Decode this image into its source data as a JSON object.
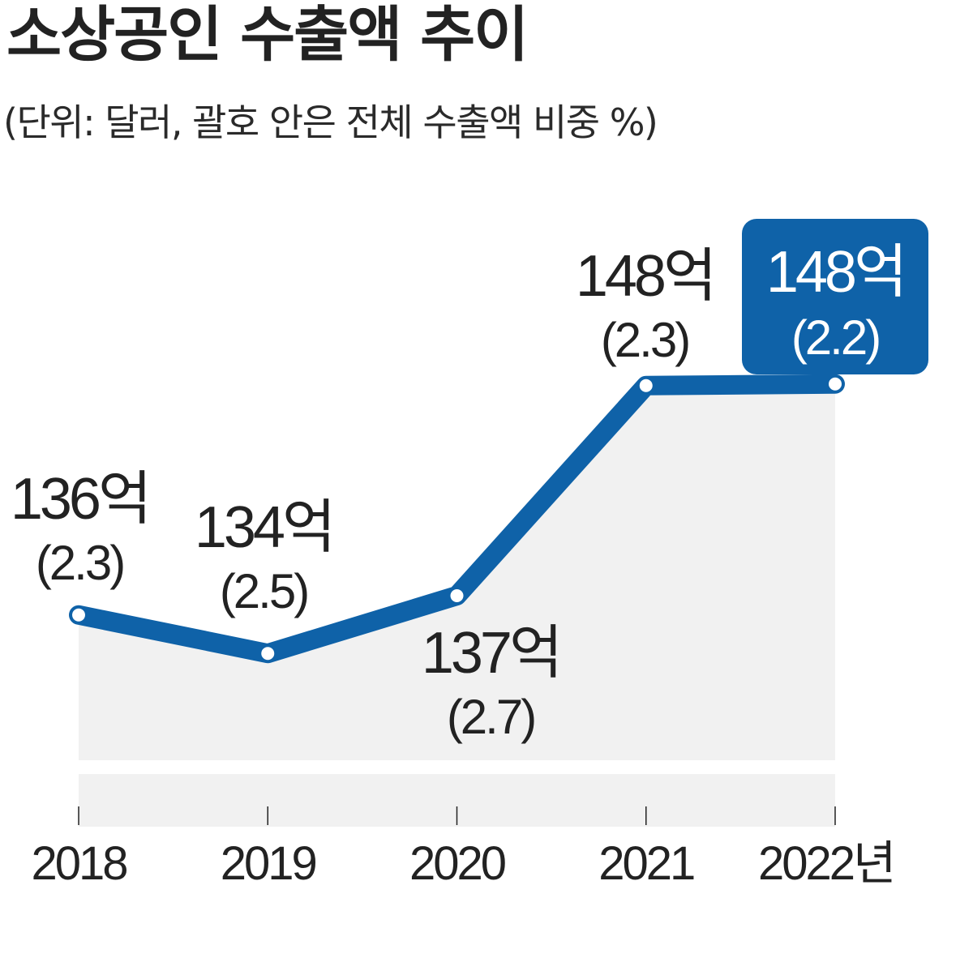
{
  "title": "소상공인 수출액 추이",
  "subtitle": "(단위: 달러, 괄호 안은 전체 수출액 비중 %)",
  "colors": {
    "line": "#0f62a8",
    "highlight_box": "#0f62a8",
    "area_fill": "#f1f1f1",
    "text": "#222222",
    "point_fill": "#ffffff"
  },
  "chart_data": {
    "type": "line",
    "x": [
      "2018",
      "2019",
      "2020",
      "2021",
      "2022년"
    ],
    "values": [
      136,
      134,
      137,
      148,
      148
    ],
    "value_labels": [
      "136억",
      "134억",
      "137억",
      "148억",
      "148억"
    ],
    "share_labels": [
      "(2.3)",
      "(2.5)",
      "(2.7)",
      "(2.3)",
      "(2.2)"
    ],
    "highlight_index": 4,
    "area_fill": true,
    "grid": false,
    "legend": "none"
  }
}
